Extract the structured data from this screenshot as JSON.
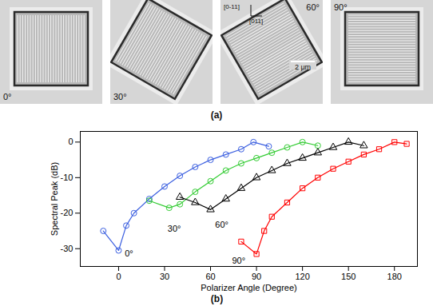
{
  "panel_a": {
    "label": "(a)",
    "images": [
      {
        "label": "0°",
        "angle": 0
      },
      {
        "label": "30°",
        "angle": 30
      },
      {
        "label": "60°",
        "angle": 60
      },
      {
        "label": "90°",
        "angle": 90
      }
    ],
    "scale_bar": "2 μm",
    "orientation_labels": [
      "[0-11]",
      "[011]"
    ]
  },
  "chart_data": {
    "type": "line",
    "caption": "(b)",
    "x_label": "Polarizer Angle (Degree)",
    "y_label": "Spectral Peak (dB)",
    "xlim": [
      -25,
      195
    ],
    "xticks": [
      0,
      30,
      60,
      90,
      120,
      150,
      180
    ],
    "ylim": [
      -35,
      3
    ],
    "yticks": [
      -30,
      -20,
      -10,
      0
    ],
    "grid": false,
    "series": [
      {
        "name": "0°",
        "color": "#3b5fe0",
        "marker": "circle",
        "x": [
          -10,
          0,
          5,
          10,
          20,
          30,
          40,
          50,
          60,
          70,
          80,
          88,
          98
        ],
        "values": [
          -25,
          -30.5,
          -23.5,
          -20,
          -16,
          -12.5,
          -9.5,
          -7,
          -5,
          -3.5,
          -2,
          0,
          -1.2
        ]
      },
      {
        "name": "30°",
        "color": "#33cc33",
        "marker": "circle",
        "x": [
          20,
          33,
          40,
          50,
          60,
          70,
          80,
          90,
          100,
          110,
          120,
          130
        ],
        "values": [
          -16.5,
          -18.5,
          -17.5,
          -14,
          -11,
          -8,
          -6,
          -4.5,
          -3,
          -1.5,
          0,
          -1
        ]
      },
      {
        "name": "60°",
        "color": "#000000",
        "marker": "triangle",
        "x": [
          40,
          50,
          60,
          70,
          80,
          90,
          100,
          110,
          120,
          130,
          140,
          150,
          160
        ],
        "values": [
          -15.5,
          -17,
          -19,
          -16,
          -13,
          -10,
          -8,
          -6,
          -4.5,
          -3,
          -1.5,
          0,
          -1
        ]
      },
      {
        "name": "90°",
        "color": "#ff0000",
        "marker": "square",
        "x": [
          80,
          90,
          95,
          100,
          110,
          120,
          130,
          140,
          150,
          160,
          170,
          180,
          188
        ],
        "values": [
          -28,
          -31.5,
          -25,
          -21,
          -17,
          -13,
          -10,
          -7.5,
          -5.5,
          -3.5,
          -2,
          0,
          -0.5
        ]
      }
    ],
    "annotations": [
      {
        "text": "0°",
        "x": 4,
        "y": -31.5
      },
      {
        "text": "30°",
        "x": 32,
        "y": -24.4
      },
      {
        "text": "60°",
        "x": 63,
        "y": -23.3
      },
      {
        "text": "90°",
        "x": 74,
        "y": -33.5
      }
    ]
  }
}
